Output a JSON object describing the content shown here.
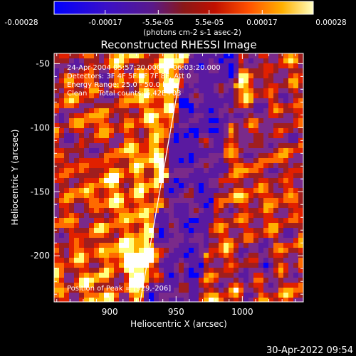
{
  "colorbar": {
    "min": -0.00028,
    "max": 0.00028,
    "tick_labels": [
      "-0.00028",
      "-0.00017",
      "-5.5e-05",
      "5.5e-05",
      "0.00017",
      "0.00028"
    ],
    "unit_label": "(photons cm-2 s-1 asec-2)"
  },
  "chart_data": {
    "type": "heatmap",
    "title": "Reconstructed RHESSI Image",
    "xlabel": "Heliocentric X (arcsec)",
    "ylabel": "Heliocentric Y (arcsec)",
    "xlim": [
      858,
      1046
    ],
    "ylim": [
      -236,
      -42
    ],
    "x_ticks": [
      900,
      950,
      1000
    ],
    "y_ticks": [
      -50,
      -100,
      -150,
      -200
    ],
    "annotations": [
      "24-Apr-2004 05:57:20.000 to 06:03:20.000",
      "Detectors: 3F 4F 5F 6F 7F 8F, Att 0",
      "Energy Range: 25.0 - 50.0 keV",
      "Clean     Total counts: 6.42E+03"
    ],
    "peak": {
      "x": 929,
      "y": -206,
      "label": "Position of Peak = [929,-206]"
    },
    "limb_line": [
      [
        923,
        -236
      ],
      [
        953,
        -60
      ]
    ],
    "colormap": [
      "#0000ff",
      "#5a1aa0",
      "#7a2a8a",
      "#a01e1e",
      "#e02000",
      "#ff6a00",
      "#ffb000",
      "#ffff80",
      "#ffffff"
    ]
  },
  "footer": {
    "timestamp": "30-Apr-2022 09:54"
  }
}
